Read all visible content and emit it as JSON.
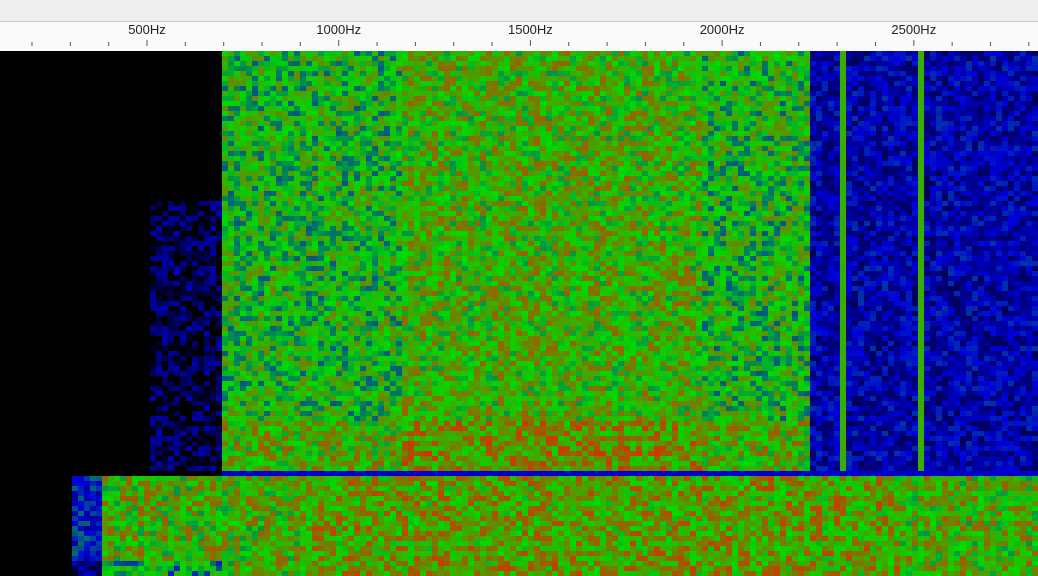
{
  "ruler": {
    "labels": [
      "500Hz",
      "1000Hz",
      "1500Hz",
      "2000Hz",
      "2500Hz"
    ]
  }
}
